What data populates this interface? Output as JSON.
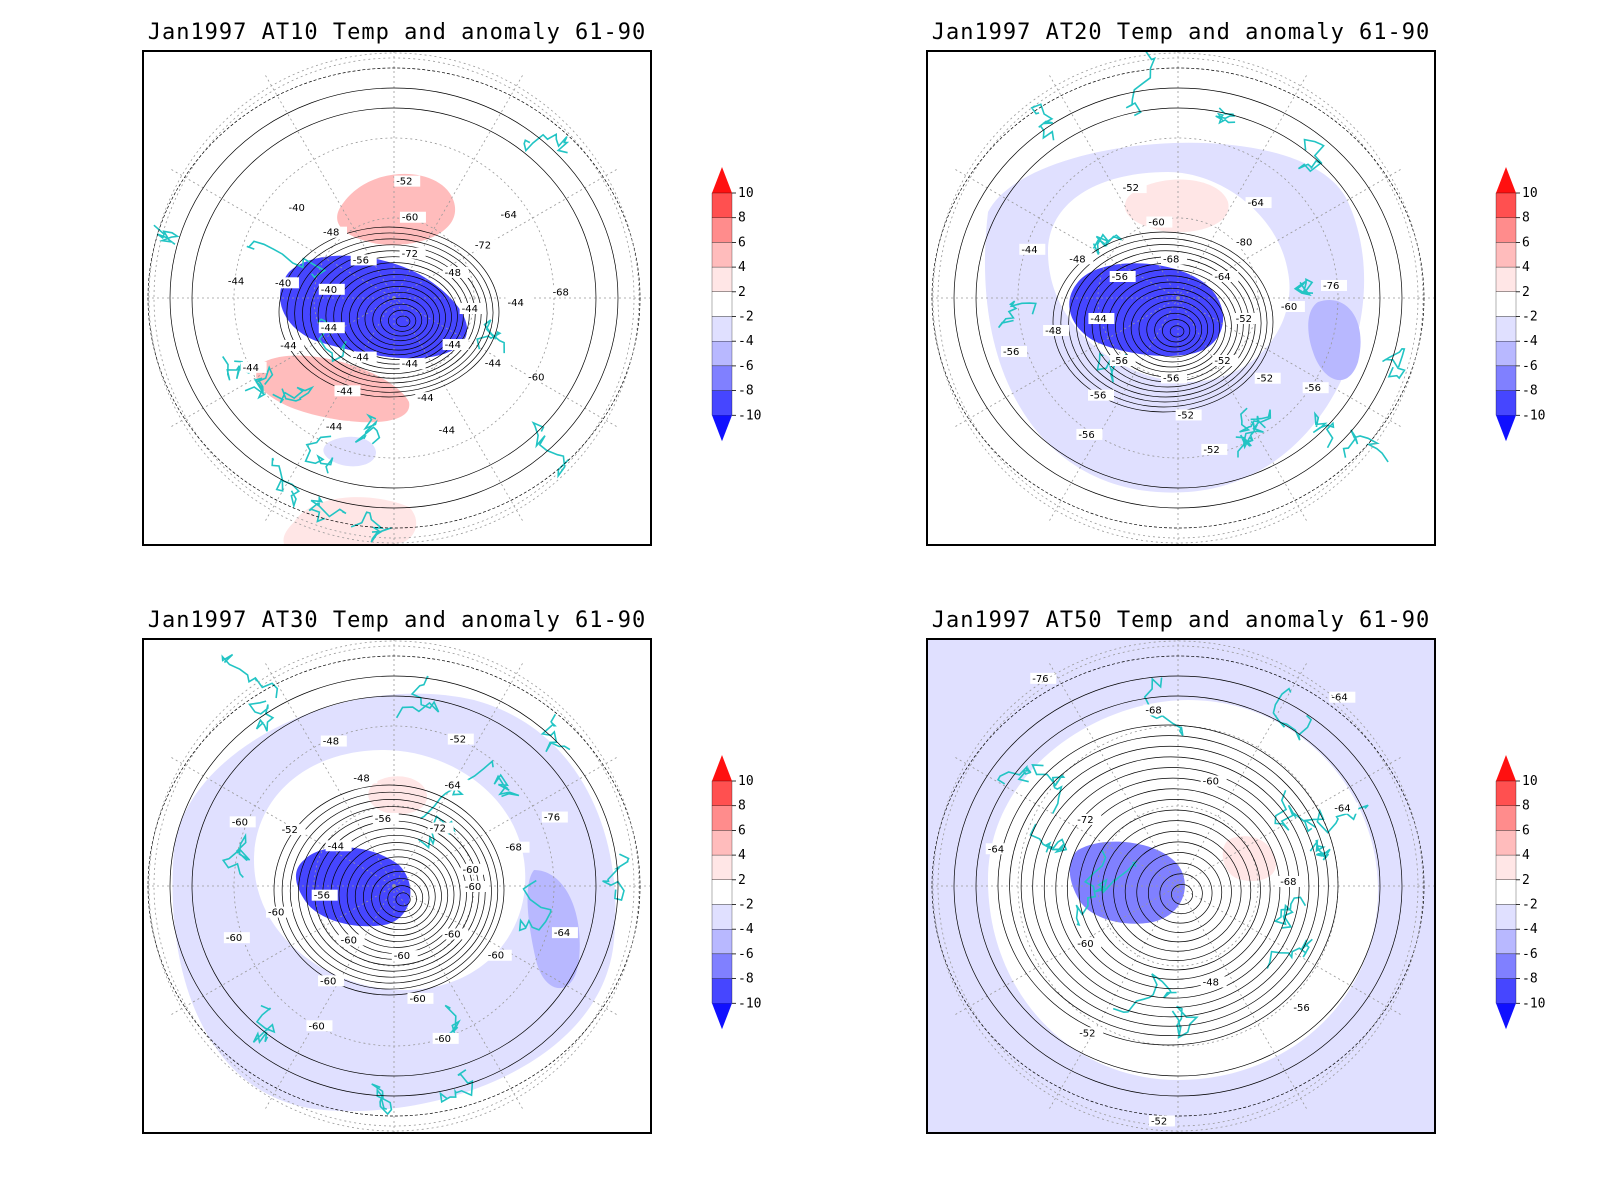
{
  "panels": [
    {
      "id": "at10",
      "title": "Jan1997 AT10 Temp and anomaly 61-90",
      "contour_labels": [
        "-44",
        "-44",
        "-44",
        "-44",
        "-44",
        "-44",
        "-44",
        "-44",
        "-44",
        "-44",
        "-44",
        "-44",
        "-44",
        "-40",
        "-40",
        "-40",
        "-48",
        "-52",
        "-56",
        "-60",
        "-64",
        "-72",
        "-72",
        "-68",
        "-48",
        "-44",
        "-60"
      ],
      "anomaly_regions": [
        {
          "sign": "positive",
          "level": 4,
          "where": "north-center"
        },
        {
          "sign": "positive",
          "level": 4,
          "where": "south-west"
        },
        {
          "sign": "positive",
          "level": 2,
          "where": "bottom"
        },
        {
          "sign": "negative",
          "level": -8,
          "where": "center"
        },
        {
          "sign": "negative",
          "level": -2,
          "where": "south-center"
        }
      ]
    },
    {
      "id": "at20",
      "title": "Jan1997 AT20 Temp and anomaly 61-90",
      "contour_labels": [
        "-52",
        "-52",
        "-52",
        "-52",
        "-52",
        "-56",
        "-56",
        "-56",
        "-56",
        "-56",
        "-48",
        "-44",
        "-44",
        "-48",
        "-52",
        "-56",
        "-60",
        "-64",
        "-68",
        "-80",
        "-76",
        "-64",
        "-60",
        "-56"
      ],
      "anomaly_regions": [
        {
          "sign": "positive",
          "level": 2,
          "where": "north-center"
        },
        {
          "sign": "negative",
          "level": -8,
          "where": "center"
        },
        {
          "sign": "negative",
          "level": -2,
          "where": "ring"
        },
        {
          "sign": "negative",
          "level": -4,
          "where": "east"
        }
      ]
    },
    {
      "id": "at30",
      "title": "Jan1997 AT30 Temp and anomaly 61-90",
      "contour_labels": [
        "-60",
        "-60",
        "-60",
        "-60",
        "-60",
        "-60",
        "-60",
        "-60",
        "-60",
        "-60",
        "-60",
        "-60",
        "-56",
        "-52",
        "-48",
        "-44",
        "-48",
        "-52",
        "-56",
        "-64",
        "-76",
        "-72",
        "-68",
        "-64",
        "-60"
      ],
      "anomaly_regions": [
        {
          "sign": "positive",
          "level": 2,
          "where": "north-center"
        },
        {
          "sign": "negative",
          "level": -8,
          "where": "center"
        },
        {
          "sign": "negative",
          "level": -2,
          "where": "ring"
        },
        {
          "sign": "negative",
          "level": -4,
          "where": "east"
        }
      ]
    },
    {
      "id": "at50",
      "title": "Jan1997 AT50 Temp and anomaly 61-90",
      "contour_labels": [
        "-68",
        "-56",
        "-52",
        "-48",
        "-52",
        "-56",
        "-60",
        "-64",
        "-76",
        "-72",
        "-68",
        "-64",
        "-60",
        "-64",
        "-68"
      ],
      "anomaly_regions": [
        {
          "sign": "positive",
          "level": 2,
          "where": "east-center"
        },
        {
          "sign": "negative",
          "level": -6,
          "where": "center"
        },
        {
          "sign": "negative",
          "level": -2,
          "where": "outer-ring"
        }
      ]
    }
  ],
  "colorbar": {
    "labels": [
      "10",
      "8",
      "6",
      "4",
      "2",
      "-2",
      "-4",
      "-6",
      "-8",
      "-10"
    ],
    "colors": [
      "#ff1010",
      "#ff5050",
      "#ff8c8c",
      "#ffbcbc",
      "#ffe6e6",
      "#ffffff",
      "#e0e0ff",
      "#b8b8ff",
      "#8080ff",
      "#4646ff",
      "#1010ff"
    ]
  },
  "colors": {
    "coastline": "#22c4c4",
    "contour": "#000000",
    "grid": "#999999"
  }
}
